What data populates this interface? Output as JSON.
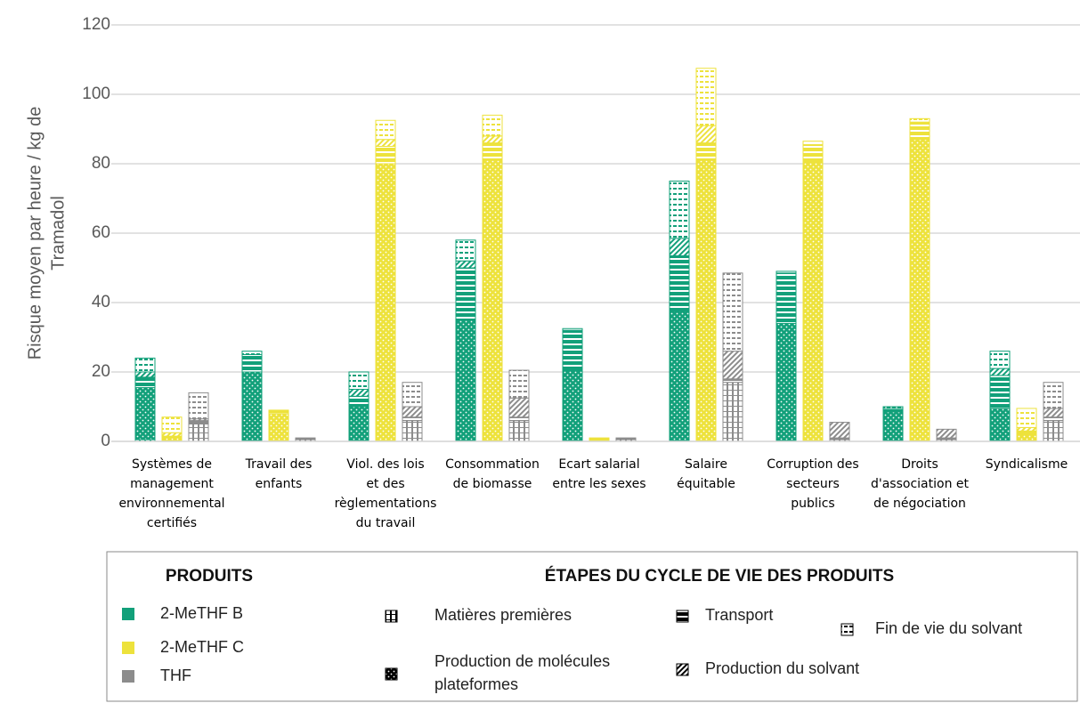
{
  "chart_data": {
    "type": "bar",
    "stacked": true,
    "y_label": [
      "Risque moyen par heure / kg de",
      "Tramadol"
    ],
    "categories": [
      [
        "Systèmes de",
        "management",
        "environnemental",
        "certifiés"
      ],
      [
        "Travail des",
        "enfants"
      ],
      [
        "Viol. des lois",
        "et des",
        "règlementations",
        "du travail"
      ],
      [
        "Consommation",
        "de biomasse"
      ],
      [
        "Ecart salarial",
        "entre les sexes"
      ],
      [
        "Salaire",
        "équitable"
      ],
      [
        "Corruption des",
        "secteurs",
        "publics"
      ],
      [
        "Droits",
        "d'association et",
        "de négociation"
      ],
      [
        "Syndicalisme"
      ]
    ],
    "ylim": [
      0,
      120
    ],
    "yticks": [
      0,
      20,
      40,
      60,
      80,
      100,
      120
    ],
    "grid": true,
    "legend_titles": {
      "products": "PRODUITS",
      "stages": "ÉTAPES DU CYCLE DE VIE DES PRODUITS"
    },
    "products": [
      {
        "name": "2-MeTHF B",
        "color": "#12a07a"
      },
      {
        "name": "2-MeTHF C",
        "color": "#ede23c"
      },
      {
        "name": "THF",
        "color": "#8c8c8c"
      }
    ],
    "stages": [
      {
        "name": [
          "Matières premières"
        ],
        "pattern": "grid"
      },
      {
        "name": [
          "Production de molécules",
          "plateformes"
        ],
        "pattern": "dots"
      },
      {
        "name": [
          "Transport"
        ],
        "pattern": "horizontal"
      },
      {
        "name": [
          "Production du solvant"
        ],
        "pattern": "diagonal"
      },
      {
        "name": [
          "Fin de vie du solvant"
        ],
        "pattern": "dashes"
      }
    ],
    "values": [
      [
        [
          0.5,
          0,
          0,
          0,
          0,
          0,
          0,
          0,
          0
        ],
        [
          15,
          20,
          10,
          35,
          20.5,
          37.5,
          34,
          8.5,
          9.5
        ],
        [
          3,
          5,
          3,
          15,
          11.5,
          16,
          14.5,
          1,
          9.5
        ],
        [
          1.5,
          0,
          2,
          2,
          0,
          5,
          0,
          0,
          2
        ],
        [
          4,
          1,
          5,
          6,
          0.5,
          16.5,
          0.5,
          0.5,
          5
        ]
      ],
      [
        [
          0,
          0,
          0,
          0,
          0,
          0,
          0,
          0,
          0
        ],
        [
          1,
          8,
          80,
          81,
          0.5,
          81,
          80.5,
          87,
          2
        ],
        [
          0.5,
          1,
          5,
          5,
          0.5,
          5,
          5,
          5,
          1
        ],
        [
          1,
          0,
          2,
          2,
          0,
          5,
          0,
          0,
          1
        ],
        [
          4.5,
          0,
          5.5,
          6,
          0,
          16.5,
          1,
          1,
          5.5
        ]
      ],
      [
        [
          5,
          0.5,
          6,
          6,
          0.5,
          17,
          0.5,
          0.5,
          6
        ],
        [
          0,
          0,
          0,
          0,
          0,
          0,
          0,
          0,
          0
        ],
        [
          1,
          0.5,
          1,
          1,
          0.5,
          1,
          0.5,
          0.5,
          1
        ],
        [
          0.5,
          0,
          3,
          5.5,
          0,
          8,
          4.5,
          2.5,
          2.5
        ],
        [
          7.5,
          0,
          7,
          8,
          0,
          22.5,
          0,
          0,
          7.5
        ]
      ]
    ]
  }
}
